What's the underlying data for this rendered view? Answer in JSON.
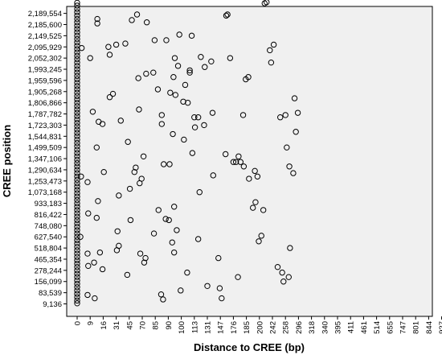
{
  "chart_data": {
    "type": "scatter",
    "title": "",
    "xlabel": "Distance to CREE (bp)",
    "ylabel": "CREE position",
    "x_categories": [
      "0",
      "9",
      "16",
      "31",
      "45",
      "70",
      "85",
      "90",
      "100",
      "113",
      "131",
      "147",
      "176",
      "185",
      "200",
      "242",
      "258",
      "296",
      "318",
      "340",
      "395",
      "411",
      "461",
      "514",
      "655",
      "747",
      "801",
      "844",
      "927"
    ],
    "y_categories": [
      "9,136",
      "83,539",
      "156,099",
      "278,244",
      "465,354",
      "518,804",
      "627,540",
      "748,080",
      "816,422",
      "933,183",
      "1,073,168",
      "1,253,473",
      "1,290,634",
      "1,347,106",
      "1,499,509",
      "1,544,831",
      "1,723,303",
      "1,787,782",
      "1,806,866",
      "1,905,268",
      "1,959,596",
      "1,993,245",
      "2,052,302",
      "2,095,929",
      "2,149,525",
      "2,185,600",
      "2,189,554"
    ],
    "grid": false,
    "legend": "none",
    "plot_background": "#f0f0f0",
    "marker_color": "#000000",
    "column_x0_points": [
      0.05,
      0.3,
      0.6,
      0.9,
      1.2,
      1.5,
      1.8,
      2.1,
      2.4,
      2.7,
      3.0,
      3.3,
      3.6,
      3.9,
      4.2,
      4.5,
      4.8,
      5.1,
      5.4,
      5.7,
      6.0,
      6.3,
      6.6,
      6.9,
      7.2,
      7.5,
      7.8,
      8.1,
      8.4,
      8.7,
      9.0,
      9.3,
      9.6,
      9.9,
      10.2,
      10.5,
      10.8,
      11.1,
      11.4,
      11.7,
      12.0,
      12.3,
      12.6,
      12.9,
      13.2,
      13.5,
      13.8,
      14.1,
      14.4,
      14.7,
      15.0,
      15.3,
      15.6,
      15.9,
      16.2,
      16.5,
      16.8,
      17.1,
      17.4,
      17.7,
      18.0,
      18.3,
      18.6,
      18.9,
      19.2,
      19.5,
      19.8,
      20.1,
      20.4,
      20.7,
      21.0,
      21.3,
      21.6,
      21.9,
      22.2,
      22.5,
      22.8,
      23.1,
      23.4,
      23.7,
      24.0,
      24.3,
      24.6,
      24.9,
      25.2,
      25.5,
      25.8,
      26.1,
      26.4,
      26.7,
      26.95
    ],
    "points": [
      {
        "x": 0.25,
        "y": 6.0
      },
      {
        "x": 0.3,
        "y": 11.4
      },
      {
        "x": 0.35,
        "y": 22.9
      },
      {
        "x": 0.8,
        "y": 10.9
      },
      {
        "x": 0.8,
        "y": 0.8
      },
      {
        "x": 0.8,
        "y": 4.5
      },
      {
        "x": 0.85,
        "y": 8.1
      },
      {
        "x": 0.85,
        "y": 3.4
      },
      {
        "x": 1.0,
        "y": 22.0
      },
      {
        "x": 1.2,
        "y": 17.2
      },
      {
        "x": 1.3,
        "y": 3.7
      },
      {
        "x": 1.35,
        "y": 0.5
      },
      {
        "x": 1.5,
        "y": 14.0
      },
      {
        "x": 1.5,
        "y": 7.7
      },
      {
        "x": 1.55,
        "y": 25.5
      },
      {
        "x": 1.55,
        "y": 25.1
      },
      {
        "x": 1.6,
        "y": 9.2
      },
      {
        "x": 1.65,
        "y": 16.3
      },
      {
        "x": 1.75,
        "y": 4.6
      },
      {
        "x": 1.95,
        "y": 16.1
      },
      {
        "x": 1.95,
        "y": 3.1
      },
      {
        "x": 2.05,
        "y": 11.8
      },
      {
        "x": 2.4,
        "y": 23.0
      },
      {
        "x": 2.5,
        "y": 22.3
      },
      {
        "x": 2.5,
        "y": 18.5
      },
      {
        "x": 2.75,
        "y": 18.8
      },
      {
        "x": 3.0,
        "y": 23.2
      },
      {
        "x": 3.05,
        "y": 4.8
      },
      {
        "x": 3.1,
        "y": 6.5
      },
      {
        "x": 3.2,
        "y": 9.7
      },
      {
        "x": 3.2,
        "y": 5.2
      },
      {
        "x": 3.35,
        "y": 16.4
      },
      {
        "x": 3.7,
        "y": 23.3
      },
      {
        "x": 3.85,
        "y": 2.6
      },
      {
        "x": 3.9,
        "y": 14.5
      },
      {
        "x": 4.05,
        "y": 10.3
      },
      {
        "x": 4.1,
        "y": 7.5
      },
      {
        "x": 4.2,
        "y": 25.4
      },
      {
        "x": 4.4,
        "y": 11.8
      },
      {
        "x": 4.5,
        "y": 12.2
      },
      {
        "x": 4.6,
        "y": 25.9
      },
      {
        "x": 4.7,
        "y": 20.2
      },
      {
        "x": 4.75,
        "y": 17.4
      },
      {
        "x": 4.8,
        "y": 10.8
      },
      {
        "x": 4.85,
        "y": 4.5
      },
      {
        "x": 4.95,
        "y": 11.2
      },
      {
        "x": 5.1,
        "y": 13.2
      },
      {
        "x": 5.15,
        "y": 3.7
      },
      {
        "x": 5.25,
        "y": 4.1
      },
      {
        "x": 5.3,
        "y": 20.6
      },
      {
        "x": 5.35,
        "y": 25.2
      },
      {
        "x": 5.85,
        "y": 20.7
      },
      {
        "x": 5.9,
        "y": 6.3
      },
      {
        "x": 5.95,
        "y": 23.6
      },
      {
        "x": 6.2,
        "y": 19.2
      },
      {
        "x": 6.25,
        "y": 8.4
      },
      {
        "x": 6.45,
        "y": 0.85
      },
      {
        "x": 6.5,
        "y": 16.9
      },
      {
        "x": 6.5,
        "y": 16.1
      },
      {
        "x": 6.6,
        "y": 0.4
      },
      {
        "x": 6.65,
        "y": 12.5
      },
      {
        "x": 6.8,
        "y": 7.6
      },
      {
        "x": 6.85,
        "y": 23.6
      },
      {
        "x": 7.05,
        "y": 7.5
      },
      {
        "x": 7.1,
        "y": 12.5
      },
      {
        "x": 7.15,
        "y": 18.9
      },
      {
        "x": 7.3,
        "y": 5.5
      },
      {
        "x": 7.35,
        "y": 15.2
      },
      {
        "x": 7.4,
        "y": 20.3
      },
      {
        "x": 7.45,
        "y": 4.6
      },
      {
        "x": 7.45,
        "y": 8.7
      },
      {
        "x": 7.5,
        "y": 22.0
      },
      {
        "x": 7.55,
        "y": 18.7
      },
      {
        "x": 7.65,
        "y": 6.6
      },
      {
        "x": 7.75,
        "y": 21.3
      },
      {
        "x": 7.85,
        "y": 24.1
      },
      {
        "x": 7.95,
        "y": 1.2
      },
      {
        "x": 8.15,
        "y": 18.1
      },
      {
        "x": 8.2,
        "y": 14.7
      },
      {
        "x": 8.3,
        "y": 19.6
      },
      {
        "x": 8.45,
        "y": 2.8
      },
      {
        "x": 8.5,
        "y": 18.0
      },
      {
        "x": 8.65,
        "y": 20.7
      },
      {
        "x": 8.65,
        "y": 20.9
      },
      {
        "x": 8.8,
        "y": 24.0
      },
      {
        "x": 8.85,
        "y": 13.5
      },
      {
        "x": 9.0,
        "y": 16.7
      },
      {
        "x": 9.05,
        "y": 15.8
      },
      {
        "x": 9.3,
        "y": 5.8
      },
      {
        "x": 9.3,
        "y": 16.7
      },
      {
        "x": 9.4,
        "y": 10.0
      },
      {
        "x": 9.5,
        "y": 22.1
      },
      {
        "x": 9.75,
        "y": 16.0
      },
      {
        "x": 9.8,
        "y": 21.2
      },
      {
        "x": 10.0,
        "y": 1.6
      },
      {
        "x": 10.3,
        "y": 21.7
      },
      {
        "x": 10.4,
        "y": 17.1
      },
      {
        "x": 10.45,
        "y": 11.5
      },
      {
        "x": 10.85,
        "y": 4.1
      },
      {
        "x": 10.95,
        "y": 1.4
      },
      {
        "x": 11.1,
        "y": 0.5
      },
      {
        "x": 11.4,
        "y": 13.4
      },
      {
        "x": 11.45,
        "y": 25.8
      },
      {
        "x": 11.55,
        "y": 25.9
      },
      {
        "x": 11.75,
        "y": 22.0
      },
      {
        "x": 12.0,
        "y": 12.7
      },
      {
        "x": 12.2,
        "y": 12.7
      },
      {
        "x": 12.35,
        "y": 2.4
      },
      {
        "x": 12.4,
        "y": 13.2
      },
      {
        "x": 12.55,
        "y": 12.7
      },
      {
        "x": 12.75,
        "y": 16.9
      },
      {
        "x": 12.8,
        "y": 12.3
      },
      {
        "x": 12.95,
        "y": 20.1
      },
      {
        "x": 13.15,
        "y": 20.3
      },
      {
        "x": 13.2,
        "y": 11.2
      },
      {
        "x": 13.5,
        "y": 8.6
      },
      {
        "x": 13.65,
        "y": 11.9
      },
      {
        "x": 13.7,
        "y": 9.1
      },
      {
        "x": 13.85,
        "y": 11.4
      },
      {
        "x": 13.95,
        "y": 5.6
      },
      {
        "x": 14.15,
        "y": 6.1
      },
      {
        "x": 14.3,
        "y": 8.4
      },
      {
        "x": 14.4,
        "y": 26.9
      },
      {
        "x": 14.55,
        "y": 27.0
      },
      {
        "x": 14.8,
        "y": 22.7
      },
      {
        "x": 14.9,
        "y": 21.6
      },
      {
        "x": 15.1,
        "y": 23.2
      },
      {
        "x": 15.4,
        "y": 3.3
      },
      {
        "x": 15.6,
        "y": 16.7
      },
      {
        "x": 15.75,
        "y": 2.8
      },
      {
        "x": 15.85,
        "y": 2.0
      },
      {
        "x": 16.0,
        "y": 16.9
      },
      {
        "x": 16.1,
        "y": 14.0
      },
      {
        "x": 16.25,
        "y": 2.4
      },
      {
        "x": 16.3,
        "y": 12.3
      },
      {
        "x": 16.35,
        "y": 5.0
      },
      {
        "x": 16.6,
        "y": 11.7
      },
      {
        "x": 16.7,
        "y": 18.4
      },
      {
        "x": 16.8,
        "y": 15.4
      },
      {
        "x": 16.95,
        "y": 17.1
      }
    ]
  }
}
